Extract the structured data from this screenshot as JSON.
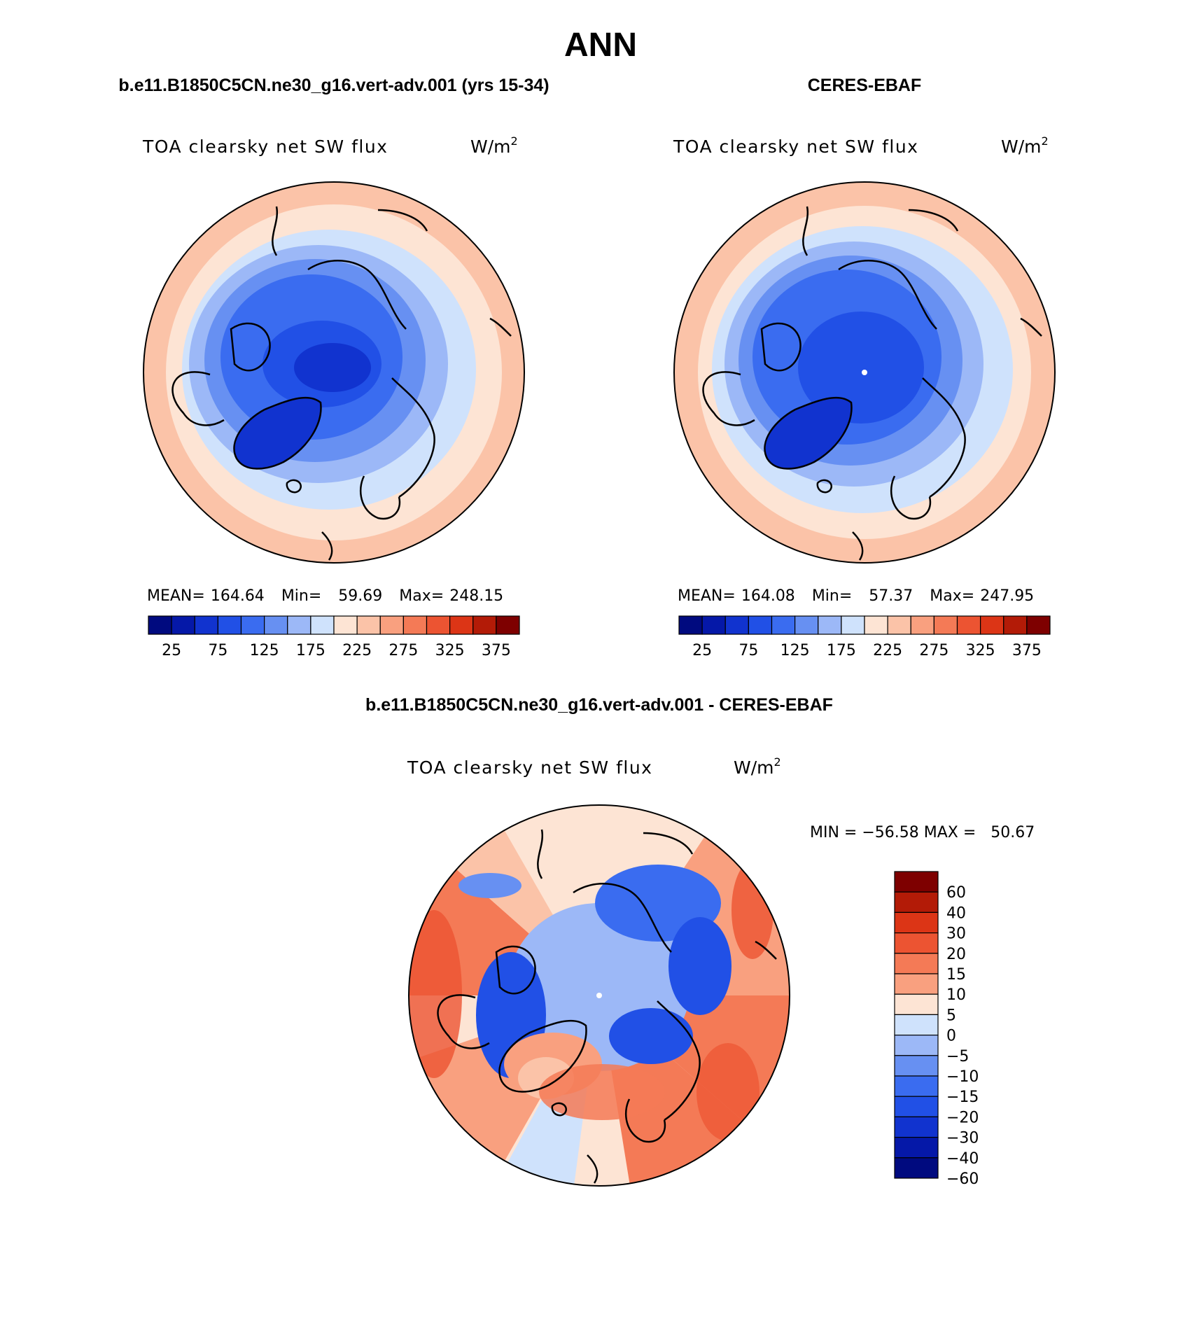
{
  "figure": {
    "title": "ANN"
  },
  "panels": [
    {
      "id": "model",
      "header": "b.e11.B1850C5CN.ne30_g16.vert-adv.001 (yrs 15-34)",
      "variable": "TOA clearsky net SW flux",
      "units_base": "W/m",
      "units_sup": "2",
      "stats": {
        "mean_label": "MEAN=",
        "mean": "164.64",
        "min_label": "Min=",
        "min": "59.69",
        "max_label": "Max=",
        "max": "248.15"
      },
      "colorbar_ticks": [
        "25",
        "75",
        "125",
        "175",
        "225",
        "275",
        "325",
        "375"
      ]
    },
    {
      "id": "obs",
      "header": "CERES-EBAF",
      "variable": "TOA clearsky net SW flux",
      "units_base": "W/m",
      "units_sup": "2",
      "stats": {
        "mean_label": "MEAN=",
        "mean": "164.08",
        "min_label": "Min=",
        "min": "57.37",
        "max_label": "Max=",
        "max": "247.95"
      },
      "colorbar_ticks": [
        "25",
        "75",
        "125",
        "175",
        "225",
        "275",
        "325",
        "375"
      ]
    },
    {
      "id": "diff",
      "header": "b.e11.B1850C5CN.ne30_g16.vert-adv.001 - CERES-EBAF",
      "variable": "TOA clearsky net SW flux",
      "units_base": "W/m",
      "units_sup": "2",
      "stats_text": "MIN = −56.58 MAX =   50.67",
      "colorbar_ticks": [
        "60",
        "40",
        "30",
        "20",
        "15",
        "10",
        "5",
        "0",
        "−5",
        "−10",
        "−15",
        "−20",
        "−30",
        "−40",
        "−60"
      ]
    }
  ],
  "colors": {
    "abs_scale": [
      "#000a7f",
      "#0518a8",
      "#1133cf",
      "#2150e6",
      "#3a6cf0",
      "#6790f2",
      "#9cb8f7",
      "#cfe2fc",
      "#fde4d4",
      "#fbc3a8",
      "#f9a07f",
      "#f47a56",
      "#ec5432",
      "#dc3516",
      "#b31b07",
      "#7e0000"
    ],
    "diff_scale": [
      "#7e0000",
      "#b31b07",
      "#dc3516",
      "#ec5432",
      "#f47a56",
      "#f9a07f",
      "#fde4d4",
      "#cfe2fc",
      "#9cb8f7",
      "#6790f2",
      "#3a6cf0",
      "#2150e6",
      "#1133cf",
      "#0518a8",
      "#000a7f"
    ]
  }
}
